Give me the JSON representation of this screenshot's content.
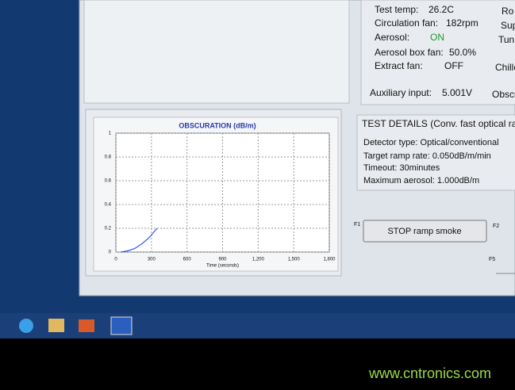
{
  "status": [
    {
      "label": "Test temp:",
      "value": "26.2C"
    },
    {
      "label": "Circulation fan:",
      "value": "182rpm"
    },
    {
      "label": "Aerosol:",
      "value": "ON"
    },
    {
      "label": "Aerosol box fan:",
      "value": "50.0%"
    },
    {
      "label": "Extract fan:",
      "value": "OFF"
    },
    {
      "label": "Auxiliary input:",
      "value": "5.001V"
    }
  ],
  "status_right": [
    "Ro",
    "Sup",
    "Tun",
    "Chille",
    "Obscu"
  ],
  "chart_data": {
    "type": "line",
    "title": "OBSCURATION (dB/m)",
    "x_label": "Time (seconds)",
    "x": [
      40,
      100,
      160,
      220,
      280,
      330,
      350
    ],
    "values": [
      0,
      0.01,
      0.03,
      0.07,
      0.12,
      0.18,
      0.2
    ],
    "color": "#3355ee",
    "xlim": [
      0,
      1800
    ],
    "xticks": [
      0,
      300,
      600,
      900,
      {
        "value": 1200,
        "label": "1,200"
      },
      {
        "value": 1500,
        "label": "1,500"
      },
      {
        "value": 1800,
        "label": "1,800"
      }
    ],
    "ylim": [
      0,
      1
    ],
    "yticks": [
      0,
      0.2,
      0.4,
      0.6,
      0.8,
      1
    ],
    "grid": true
  },
  "test_details": {
    "title": "TEST DETAILS (Conv. fast optical ra",
    "lines": [
      "Detector type:  Optical/conventional",
      "Target ramp rate:  0.050dB/m/min",
      "Timeout:  30minutes",
      "Maximum aerosol:  1.000dB/m"
    ]
  },
  "keys": {
    "f1": "F1",
    "f2": "F2",
    "f5": "F5"
  },
  "button": "STOP ramp smoke",
  "watermark": "www.cntronics.com"
}
